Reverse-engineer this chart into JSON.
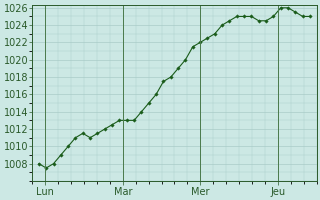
{
  "background_color": "#cce8e4",
  "grid_color": "#aaccc8",
  "line_color": "#1a5c1a",
  "marker_color": "#1a5c1a",
  "x_tick_labels": [
    "Lun",
    "Mar",
    "Mer",
    "Jeu"
  ],
  "ytick_min": 1006,
  "ytick_max": 1026,
  "ytick_step": 2,
  "y_values": [
    1008,
    1007.5,
    1008,
    1009,
    1010,
    1011,
    1011.5,
    1011,
    1011.5,
    1012,
    1012.5,
    1013,
    1013,
    1013,
    1014,
    1015,
    1016,
    1017.5,
    1018,
    1019,
    1020,
    1021.5,
    1022,
    1022.5,
    1023,
    1024,
    1024.5,
    1025,
    1025,
    1025,
    1024.5,
    1024.5,
    1025,
    1026,
    1026,
    1025.5,
    1025,
    1025
  ],
  "tick_label_fontsize": 7,
  "axis_color": "#2a5a2a",
  "spine_color": "#2a5a2a",
  "vline_color": "#4a7a4a"
}
